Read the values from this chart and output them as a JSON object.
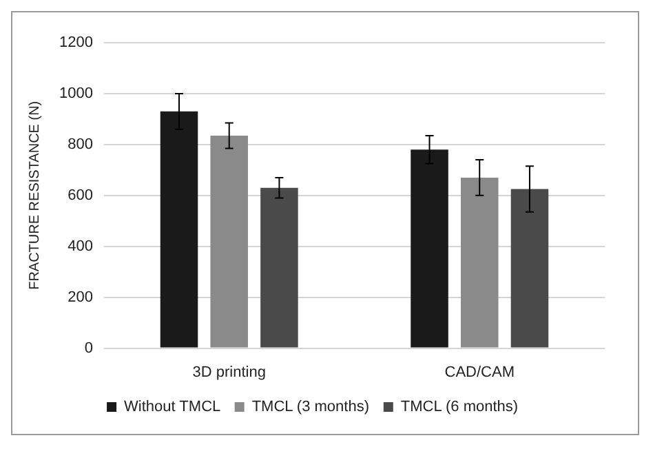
{
  "chart_data": {
    "type": "bar",
    "ylabel": "FRACTURE RESISTANCE (N)",
    "categories": [
      "3D printing",
      "CAD/CAM"
    ],
    "series": [
      {
        "name": "Without TMCL",
        "color": "#1a1a1a",
        "values": [
          930,
          780
        ],
        "errors": [
          70,
          55
        ]
      },
      {
        "name": "TMCL (3 months)",
        "color": "#8a8a8a",
        "values": [
          835,
          670
        ],
        "errors": [
          50,
          70
        ]
      },
      {
        "name": "TMCL (6 months)",
        "color": "#4a4a4a",
        "values": [
          630,
          625
        ],
        "errors": [
          40,
          90
        ]
      }
    ],
    "ylim": [
      0,
      1200
    ],
    "yticks": [
      0,
      200,
      400,
      600,
      800,
      1000,
      1200
    ],
    "grid": "y",
    "legend": "bottom"
  }
}
